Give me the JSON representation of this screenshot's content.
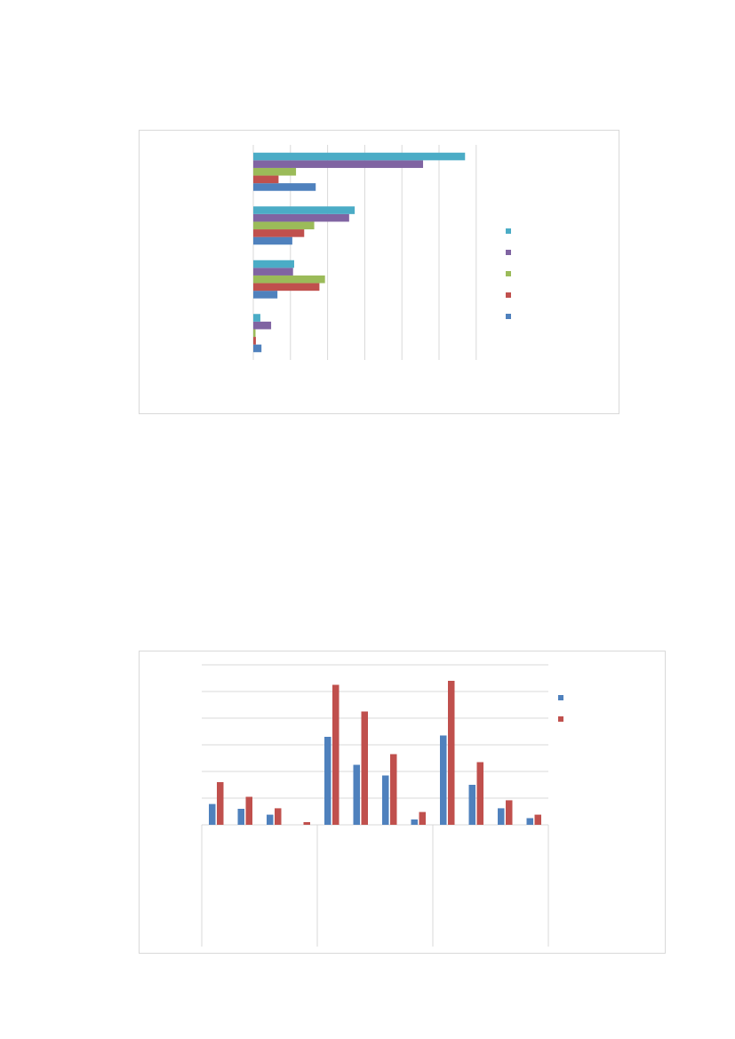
{
  "chart_data": [
    {
      "type": "bar",
      "orientation": "horizontal",
      "title": "",
      "xlabel": "",
      "ylabel": "",
      "categories": [
        "",
        "",
        "",
        ""
      ],
      "xlim": [
        0,
        6
      ],
      "grid": true,
      "legend_position": "right",
      "series": [
        {
          "color": "#4f81bd",
          "values": [
            0.22,
            0.65,
            1.05,
            1.68
          ]
        },
        {
          "color": "#c0504d",
          "values": [
            0.07,
            1.78,
            1.37,
            0.68
          ]
        },
        {
          "color": "#9bbb59",
          "values": [
            0.06,
            1.93,
            1.64,
            1.15
          ]
        },
        {
          "color": "#8064a2",
          "values": [
            0.48,
            1.07,
            2.58,
            4.57
          ]
        },
        {
          "color": "#4bacc6",
          "values": [
            0.19,
            1.1,
            2.73,
            5.7
          ]
        }
      ]
    },
    {
      "type": "bar",
      "orientation": "vertical",
      "title": "",
      "xlabel": "",
      "ylabel": "",
      "categories": [
        "",
        "",
        "",
        "",
        "",
        "",
        "",
        "",
        "",
        "",
        "",
        ""
      ],
      "groups": [
        "",
        "",
        ""
      ],
      "ylim": [
        0,
        6
      ],
      "grid": true,
      "legend_position": "right",
      "series": [
        {
          "color": "#4f81bd",
          "values": [
            0.78,
            0.6,
            0.38,
            0.0,
            3.3,
            2.25,
            1.85,
            0.2,
            3.35,
            1.5,
            0.62,
            0.25
          ]
        },
        {
          "color": "#c0504d",
          "values": [
            1.6,
            1.05,
            0.62,
            0.1,
            5.25,
            4.25,
            2.65,
            0.48,
            5.4,
            2.35,
            0.92,
            0.38
          ]
        }
      ]
    }
  ]
}
